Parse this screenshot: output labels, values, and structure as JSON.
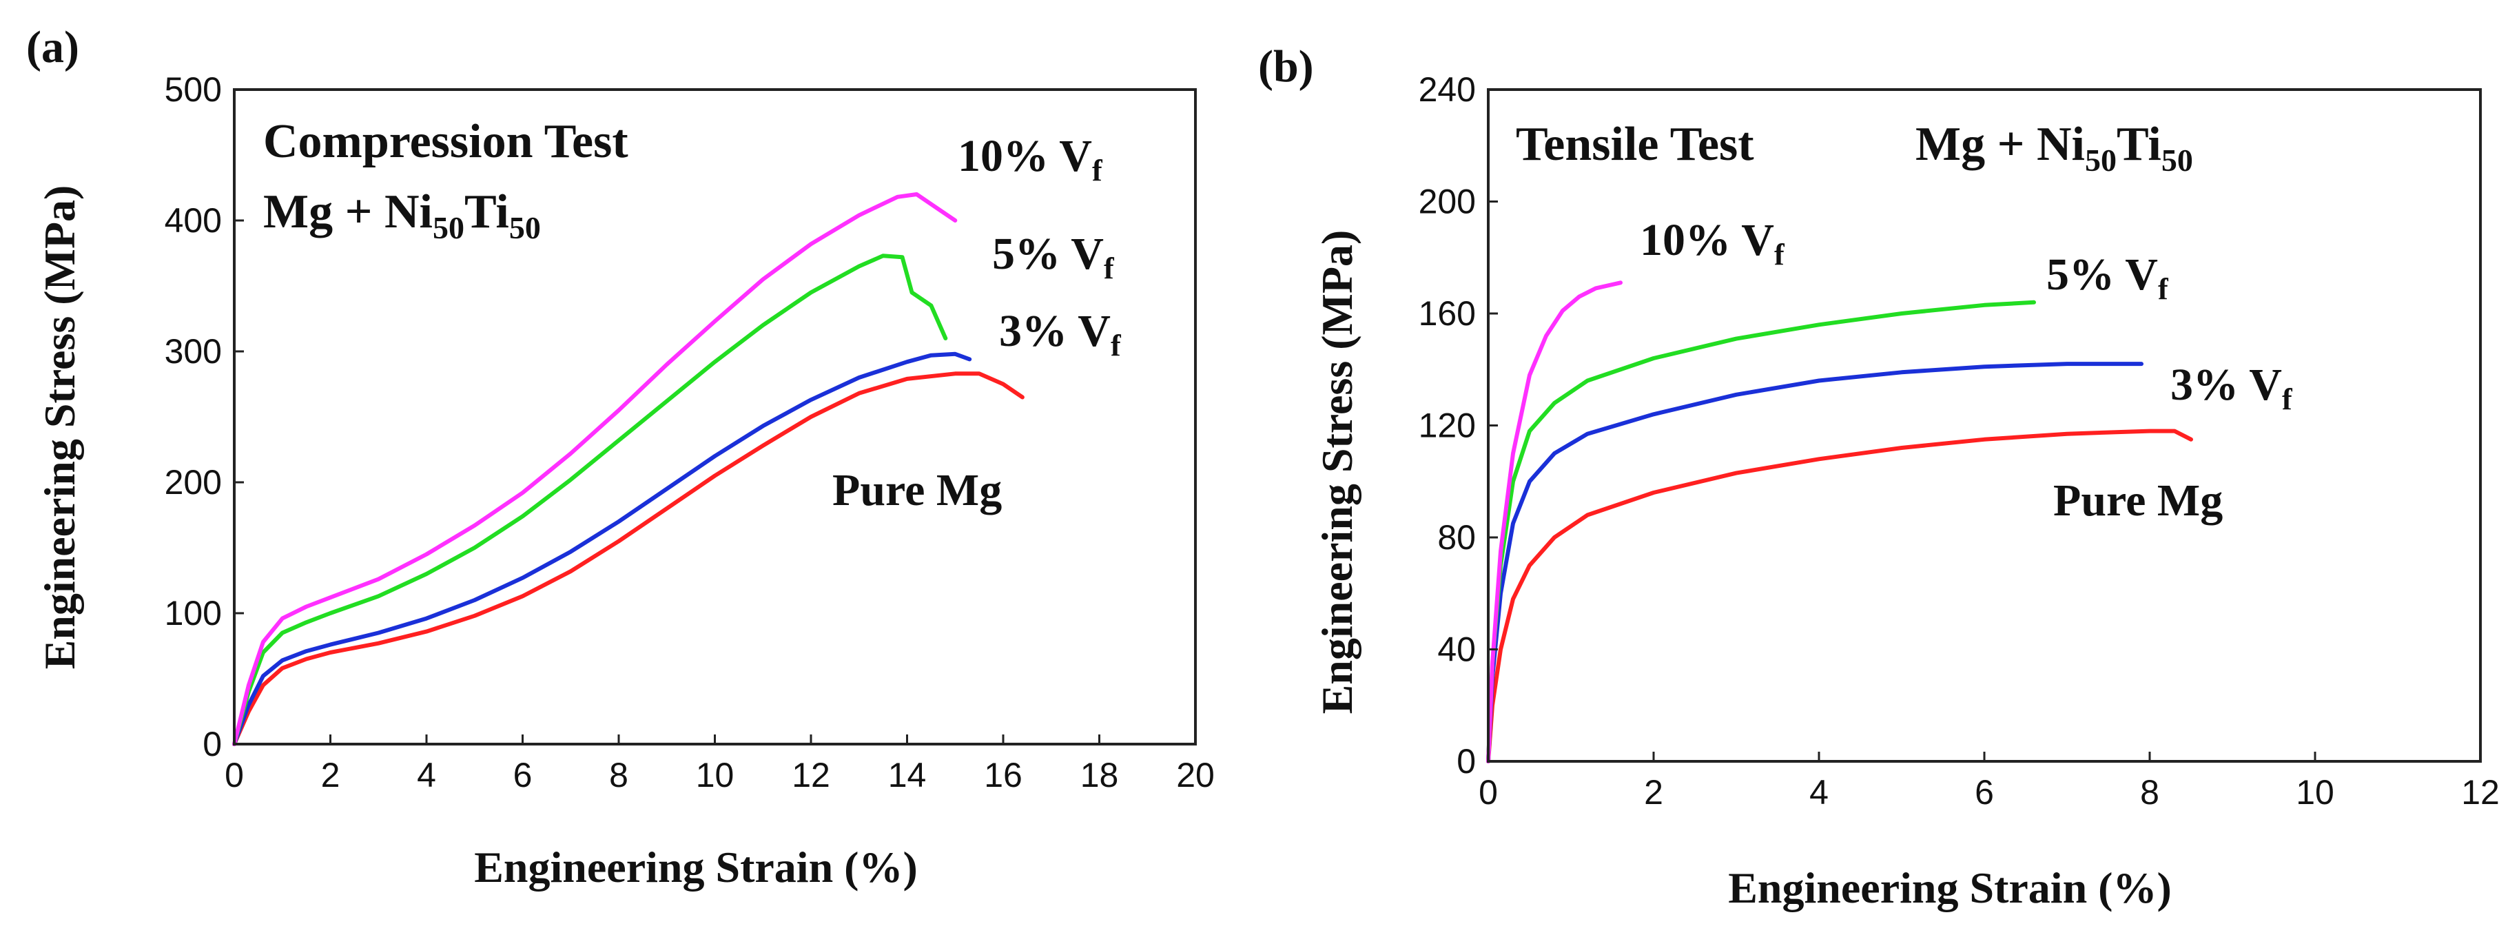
{
  "chart_data": [
    {
      "type": "line",
      "panel": "(a)",
      "title": "Compression Test",
      "subtitle": {
        "base": "Mg + Ni",
        "sub1": "50",
        "mid": "Ti",
        "sub2": "50"
      },
      "xlabel": "Engineering Strain (%)",
      "ylabel": "Engineering Stress (MPa)",
      "xlim": [
        0,
        20
      ],
      "ylim": [
        0,
        500
      ],
      "xticks": [
        0,
        2,
        4,
        6,
        8,
        10,
        12,
        14,
        16,
        18,
        20
      ],
      "yticks": [
        0,
        100,
        200,
        300,
        400,
        500
      ],
      "grid": false,
      "series": [
        {
          "name": "Pure Mg",
          "label": {
            "main": "Pure Mg",
            "sub": ""
          },
          "color": "#ff2020",
          "points": [
            [
              0,
              0
            ],
            [
              0.3,
              25
            ],
            [
              0.6,
              45
            ],
            [
              1,
              58
            ],
            [
              1.5,
              65
            ],
            [
              2,
              70
            ],
            [
              3,
              77
            ],
            [
              4,
              86
            ],
            [
              5,
              98
            ],
            [
              6,
              113
            ],
            [
              7,
              132
            ],
            [
              8,
              155
            ],
            [
              9,
              180
            ],
            [
              10,
              205
            ],
            [
              11,
              228
            ],
            [
              12,
              250
            ],
            [
              13,
              268
            ],
            [
              14,
              279
            ],
            [
              15,
              283
            ],
            [
              15.5,
              283
            ],
            [
              16,
              275
            ],
            [
              16.4,
              265
            ]
          ]
        },
        {
          "name": "3% Vf",
          "label": {
            "main": "3% V",
            "sub": "f"
          },
          "color": "#1a30d8",
          "points": [
            [
              0,
              0
            ],
            [
              0.3,
              30
            ],
            [
              0.6,
              52
            ],
            [
              1,
              64
            ],
            [
              1.5,
              71
            ],
            [
              2,
              76
            ],
            [
              3,
              85
            ],
            [
              4,
              96
            ],
            [
              5,
              110
            ],
            [
              6,
              127
            ],
            [
              7,
              147
            ],
            [
              8,
              170
            ],
            [
              9,
              195
            ],
            [
              10,
              220
            ],
            [
              11,
              243
            ],
            [
              12,
              263
            ],
            [
              13,
              280
            ],
            [
              14,
              292
            ],
            [
              14.5,
              297
            ],
            [
              15,
              298
            ],
            [
              15.3,
              294
            ]
          ]
        },
        {
          "name": "5% Vf",
          "label": {
            "main": "5% V",
            "sub": "f"
          },
          "color": "#22dd22",
          "points": [
            [
              0,
              0
            ],
            [
              0.3,
              40
            ],
            [
              0.6,
              70
            ],
            [
              1,
              85
            ],
            [
              1.5,
              93
            ],
            [
              2,
              100
            ],
            [
              3,
              113
            ],
            [
              4,
              130
            ],
            [
              5,
              150
            ],
            [
              6,
              174
            ],
            [
              7,
              202
            ],
            [
              8,
              232
            ],
            [
              9,
              262
            ],
            [
              10,
              292
            ],
            [
              11,
              320
            ],
            [
              12,
              345
            ],
            [
              13,
              365
            ],
            [
              13.5,
              373
            ],
            [
              13.9,
              372
            ],
            [
              14.1,
              345
            ],
            [
              14.5,
              335
            ],
            [
              14.8,
              310
            ]
          ]
        },
        {
          "name": "10% Vf",
          "label": {
            "main": "10% V",
            "sub": "f"
          },
          "color": "#ff30ff",
          "points": [
            [
              0,
              0
            ],
            [
              0.3,
              45
            ],
            [
              0.6,
              78
            ],
            [
              1,
              96
            ],
            [
              1.5,
              105
            ],
            [
              2,
              112
            ],
            [
              3,
              126
            ],
            [
              4,
              145
            ],
            [
              5,
              167
            ],
            [
              6,
              192
            ],
            [
              7,
              222
            ],
            [
              8,
              255
            ],
            [
              9,
              290
            ],
            [
              10,
              323
            ],
            [
              11,
              355
            ],
            [
              12,
              382
            ],
            [
              13,
              404
            ],
            [
              13.8,
              418
            ],
            [
              14.2,
              420
            ],
            [
              14.6,
              410
            ],
            [
              15,
              400
            ]
          ]
        }
      ]
    },
    {
      "type": "line",
      "panel": "(b)",
      "title": "Tensile Test",
      "subtitle": {
        "base": "Mg + Ni",
        "sub1": "50",
        "mid": "Ti",
        "sub2": "50"
      },
      "xlabel": "Engineering Strain (%)",
      "ylabel": "Engineering Stress (MPa)",
      "xlim": [
        0,
        12
      ],
      "ylim": [
        0,
        240
      ],
      "xticks": [
        0,
        2,
        4,
        6,
        8,
        10,
        12
      ],
      "yticks": [
        0,
        40,
        80,
        120,
        160,
        200,
        240
      ],
      "grid": false,
      "series": [
        {
          "name": "Pure Mg",
          "label": {
            "main": "Pure Mg",
            "sub": ""
          },
          "color": "#ff2020",
          "points": [
            [
              0,
              0
            ],
            [
              0.05,
              20
            ],
            [
              0.15,
              40
            ],
            [
              0.3,
              58
            ],
            [
              0.5,
              70
            ],
            [
              0.8,
              80
            ],
            [
              1.2,
              88
            ],
            [
              2,
              96
            ],
            [
              3,
              103
            ],
            [
              4,
              108
            ],
            [
              5,
              112
            ],
            [
              6,
              115
            ],
            [
              7,
              117
            ],
            [
              8,
              118
            ],
            [
              8.3,
              118
            ],
            [
              8.5,
              115
            ]
          ]
        },
        {
          "name": "3% Vf",
          "label": {
            "main": "3% V",
            "sub": "f"
          },
          "color": "#1a30d8",
          "points": [
            [
              0,
              0
            ],
            [
              0.05,
              30
            ],
            [
              0.15,
              60
            ],
            [
              0.3,
              85
            ],
            [
              0.5,
              100
            ],
            [
              0.8,
              110
            ],
            [
              1.2,
              117
            ],
            [
              2,
              124
            ],
            [
              3,
              131
            ],
            [
              4,
              136
            ],
            [
              5,
              139
            ],
            [
              6,
              141
            ],
            [
              7,
              142
            ],
            [
              7.9,
              142
            ]
          ]
        },
        {
          "name": "5% Vf",
          "label": {
            "main": "5% V",
            "sub": "f"
          },
          "color": "#22dd22",
          "points": [
            [
              0,
              0
            ],
            [
              0.05,
              35
            ],
            [
              0.15,
              70
            ],
            [
              0.3,
              100
            ],
            [
              0.5,
              118
            ],
            [
              0.8,
              128
            ],
            [
              1.2,
              136
            ],
            [
              2,
              144
            ],
            [
              3,
              151
            ],
            [
              4,
              156
            ],
            [
              5,
              160
            ],
            [
              6,
              163
            ],
            [
              6.6,
              164
            ]
          ]
        },
        {
          "name": "10% Vf",
          "label": {
            "main": "10% V",
            "sub": "f"
          },
          "color": "#ff30ff",
          "points": [
            [
              0,
              0
            ],
            [
              0.05,
              35
            ],
            [
              0.15,
              75
            ],
            [
              0.3,
              110
            ],
            [
              0.5,
              138
            ],
            [
              0.7,
              152
            ],
            [
              0.9,
              161
            ],
            [
              1.1,
              166
            ],
            [
              1.3,
              169
            ],
            [
              1.6,
              171
            ]
          ]
        }
      ]
    }
  ]
}
